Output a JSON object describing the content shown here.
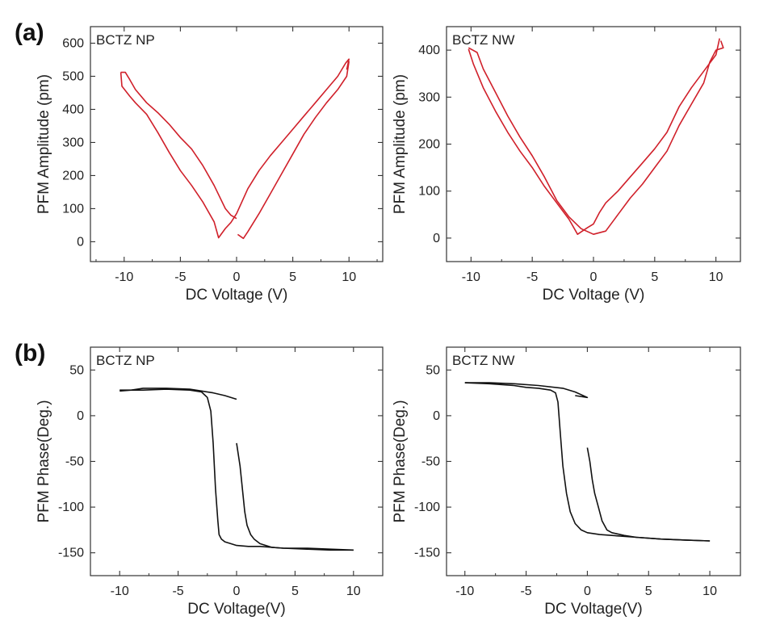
{
  "figure": {
    "panel_labels": [
      "(a)",
      "(b)"
    ]
  },
  "chart_data": [
    {
      "type": "line",
      "panel": "(a)",
      "title": "BCTZ NP",
      "xlabel": "DC Voltage (V)",
      "ylabel": "PFM Amplitude (pm)",
      "xlim": [
        -13,
        13
      ],
      "ylim": [
        -60,
        650
      ],
      "xticks": [
        -10,
        -5,
        0,
        5,
        10
      ],
      "yticks": [
        0,
        100,
        200,
        300,
        400,
        500,
        600
      ],
      "grid": false,
      "color": "#d0202a",
      "series": [
        {
          "x": [
            -10.3,
            -10.2,
            -9.5,
            -9,
            -8,
            -7,
            -6,
            -5,
            -4,
            -3,
            -2,
            -1.6,
            -1,
            -0.5,
            0,
            1,
            2,
            3,
            4,
            5,
            6,
            7,
            8,
            9,
            9.7,
            10,
            9.8
          ],
          "y": [
            512,
            470,
            440,
            420,
            385,
            330,
            270,
            215,
            170,
            120,
            60,
            12,
            40,
            58,
            85,
            160,
            215,
            260,
            300,
            340,
            380,
            420,
            460,
            500,
            540,
            552,
            520
          ]
        },
        {
          "x": [
            -10.3,
            -9.9,
            -9.5,
            -9,
            -8,
            -7,
            -6,
            -5,
            -4,
            -3,
            -2,
            -1,
            -0.5,
            0
          ],
          "y": [
            512,
            512,
            490,
            460,
            420,
            390,
            355,
            315,
            280,
            230,
            170,
            100,
            80,
            70
          ]
        },
        {
          "x": [
            0.1,
            0.6,
            1,
            2,
            3,
            4,
            5,
            6,
            7,
            8,
            9,
            9.8,
            10
          ],
          "y": [
            22,
            10,
            30,
            85,
            145,
            205,
            265,
            325,
            375,
            420,
            460,
            500,
            545
          ]
        }
      ]
    },
    {
      "type": "line",
      "panel": "(a)",
      "title": "BCTZ NW",
      "xlabel": "DC Voltage (V)",
      "ylabel": "PFM Amplitude (pm)",
      "xlim": [
        -12,
        12
      ],
      "ylim": [
        -50,
        450
      ],
      "xticks": [
        -10,
        -5,
        0,
        5,
        10
      ],
      "yticks": [
        0,
        100,
        200,
        300,
        400
      ],
      "grid": false,
      "color": "#d0202a",
      "series": [
        {
          "x": [
            -10.2,
            -9.8,
            -9,
            -8,
            -7,
            -6,
            -5,
            -4,
            -3,
            -2,
            -1.3,
            -0.5,
            0,
            0.5,
            1,
            2,
            3,
            4,
            5,
            6,
            7,
            8,
            9,
            10,
            10.3
          ],
          "y": [
            402,
            370,
            320,
            270,
            225,
            185,
            150,
            110,
            75,
            40,
            8,
            22,
            30,
            55,
            75,
            100,
            130,
            160,
            190,
            225,
            280,
            320,
            355,
            390,
            425
          ]
        },
        {
          "x": [
            -10.2,
            -9.5,
            -9,
            -8,
            -7,
            -6,
            -5,
            -4,
            -3,
            -2,
            -1,
            0,
            1,
            2,
            3,
            4,
            5,
            6,
            7,
            8,
            9,
            9.5,
            10,
            10.6,
            10.4
          ],
          "y": [
            405,
            395,
            360,
            310,
            260,
            215,
            175,
            130,
            80,
            45,
            20,
            8,
            15,
            50,
            85,
            115,
            150,
            185,
            240,
            285,
            330,
            375,
            400,
            405,
            420
          ]
        }
      ]
    },
    {
      "type": "line",
      "panel": "(b)",
      "title": "BCTZ NP",
      "xlabel": "DC Voltage(V)",
      "ylabel": "PFM Phase(Deg.)",
      "xlim": [
        -12.5,
        12.5
      ],
      "ylim": [
        -175,
        75
      ],
      "xticks": [
        -10,
        -5,
        0,
        5,
        10
      ],
      "yticks": [
        50,
        0,
        -50,
        -100,
        -150
      ],
      "grid": false,
      "color": "#111111",
      "series": [
        {
          "x": [
            -10,
            -8,
            -6,
            -4,
            -3,
            -2.5,
            -2.2,
            -2,
            -1.8,
            -1.6,
            -1.5,
            -1.3,
            -1,
            -0.5,
            0,
            1,
            2,
            4,
            6,
            8,
            10
          ],
          "y": [
            28,
            28,
            29,
            28,
            26,
            20,
            5,
            -30,
            -80,
            -115,
            -130,
            -135,
            -138,
            -140,
            -142,
            -143,
            -143,
            -145,
            -145,
            -146,
            -147
          ]
        },
        {
          "x": [
            -10,
            -9,
            -8,
            -6,
            -4,
            -3,
            -2,
            -1,
            0
          ],
          "y": [
            27,
            28,
            30,
            30,
            29,
            27,
            25,
            22,
            18
          ]
        },
        {
          "x": [
            0,
            0.3,
            0.5,
            0.7,
            0.9,
            1.2,
            1.5,
            2,
            3,
            4,
            6,
            8,
            10
          ],
          "y": [
            -30,
            -55,
            -80,
            -105,
            -120,
            -130,
            -135,
            -140,
            -144,
            -145,
            -146,
            -147,
            -147
          ]
        }
      ]
    },
    {
      "type": "line",
      "panel": "(b)",
      "title": "BCTZ NW",
      "xlabel": "DC Voltage(V)",
      "ylabel": "PFM Phase(Deg.)",
      "xlim": [
        -11.5,
        12.5
      ],
      "ylim": [
        -175,
        75
      ],
      "xticks": [
        -10,
        -5,
        0,
        5,
        10
      ],
      "yticks": [
        50,
        0,
        -50,
        -100,
        -150
      ],
      "grid": false,
      "color": "#111111",
      "series": [
        {
          "x": [
            -10,
            -8,
            -6,
            -5,
            -4,
            -3,
            -2.6,
            -2.4,
            -2.2,
            -2,
            -1.7,
            -1.4,
            -1,
            -0.5,
            0,
            1,
            2,
            4,
            6,
            8,
            10
          ],
          "y": [
            36,
            35,
            33,
            31,
            30,
            28,
            25,
            15,
            -20,
            -55,
            -85,
            -105,
            -118,
            -125,
            -128,
            -130,
            -131,
            -133,
            -135,
            -136,
            -137
          ]
        },
        {
          "x": [
            -10,
            -8,
            -6,
            -4,
            -2,
            -1,
            0,
            -1
          ],
          "y": [
            36,
            36,
            35,
            33,
            30,
            26,
            20,
            22
          ]
        },
        {
          "x": [
            0,
            0.2,
            0.4,
            0.6,
            0.9,
            1.2,
            1.6,
            2,
            3,
            4,
            6,
            8,
            10
          ],
          "y": [
            -35,
            -50,
            -70,
            -85,
            -100,
            -115,
            -125,
            -128,
            -131,
            -133,
            -135,
            -136,
            -137
          ]
        }
      ]
    }
  ]
}
